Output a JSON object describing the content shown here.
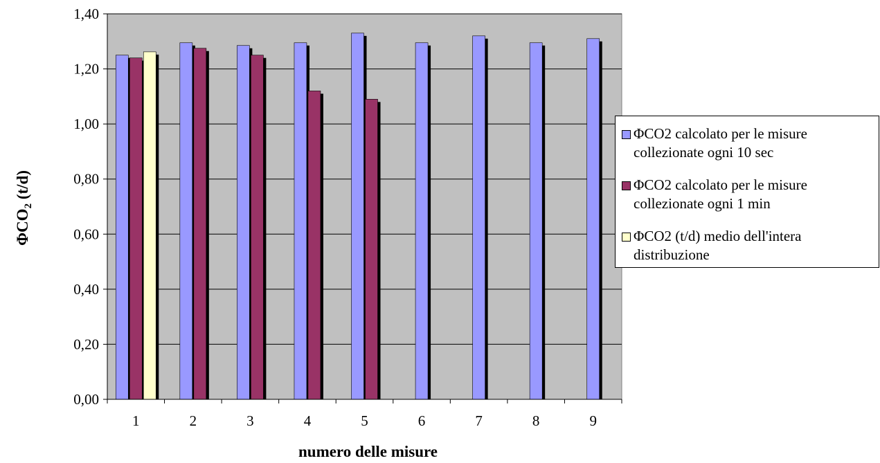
{
  "chart_data": {
    "type": "bar",
    "title": "",
    "xlabel": "numero delle misure",
    "ylabel": "ΦCO2 (t/d)",
    "ylabel_parts": {
      "main": "ΦCO",
      "sub": "2",
      "unit": " (t/d)"
    },
    "categories": [
      "1",
      "2",
      "3",
      "4",
      "5",
      "6",
      "7",
      "8",
      "9"
    ],
    "ylim": [
      0,
      1.4
    ],
    "yticks": [
      "0,00",
      "0,20",
      "0,40",
      "0,60",
      "0,80",
      "1,00",
      "1,20",
      "1,40"
    ],
    "grid": true,
    "legend_position": "right",
    "series": [
      {
        "name": "ΦCO2 calcolato per le misure collezionate ogni 10 sec",
        "legend_lines": [
          "ΦCO2 calcolato per le misure",
          "collezionate ogni 10 sec"
        ],
        "color": "#9999ff",
        "values": [
          1.25,
          1.295,
          1.285,
          1.295,
          1.33,
          1.295,
          1.32,
          1.295,
          1.31
        ]
      },
      {
        "name": "ΦCO2 calcolato per le misure collezionate ogni 1 min",
        "legend_lines": [
          "ΦCO2 calcolato per le misure",
          "collezionate ogni 1 min"
        ],
        "color": "#993366",
        "values": [
          1.24,
          1.275,
          1.25,
          1.12,
          1.09,
          null,
          null,
          null,
          null
        ]
      },
      {
        "name": "ΦCO2 (t/d) medio dell'intera distribuzione",
        "legend_lines": [
          "ΦCO2 (t/d) medio dell'intera",
          "distribuzione"
        ],
        "color": "#ffffcc",
        "values": [
          1.262,
          null,
          null,
          null,
          null,
          null,
          null,
          null,
          null
        ]
      }
    ]
  },
  "colors": {
    "plot_background": "#c0c0c0",
    "gridline": "#000000",
    "bar_shadow": "#000000"
  }
}
